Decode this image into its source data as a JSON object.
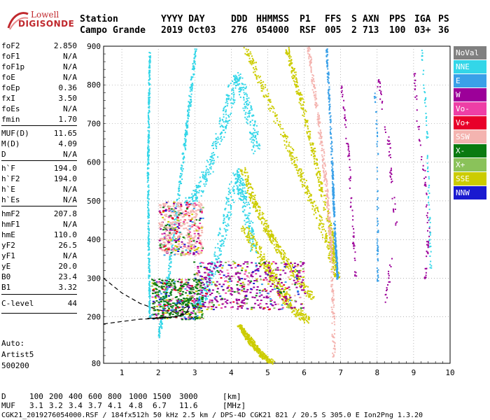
{
  "logo": {
    "line1": "Lowell",
    "line2": "DIGISONDE"
  },
  "header": {
    "station_label": "Station",
    "station_value": "Campo Grande",
    "date_label": "YYYY DAY",
    "date_value": "2019 Oct03",
    "doy_label": "DDD",
    "doy_value": "276",
    "time_label": "HHMMSS",
    "time_value": "054000",
    "p1_label": "P1",
    "p1_value": "RSF",
    "ffs_label": "FFS",
    "ffs_value": "005",
    "s_label": "S",
    "s_value": "2",
    "axn_label": "AXN",
    "axn_value": "713",
    "pps_label": "PPS",
    "pps_value": "100",
    "iga_label": "IGA",
    "iga_value": "03+",
    "ps_label": "PS",
    "ps_value": "36"
  },
  "parameters": [
    {
      "name": "foF2",
      "value": "2.850"
    },
    {
      "name": "foF1",
      "value": "N/A"
    },
    {
      "name": "foF1p",
      "value": "N/A"
    },
    {
      "name": "foE",
      "value": "N/A"
    },
    {
      "name": "foEp",
      "value": "0.36"
    },
    {
      "name": "fxI",
      "value": "3.50"
    },
    {
      "name": "foEs",
      "value": "N/A"
    },
    {
      "name": "fmin",
      "value": "1.70"
    },
    {
      "name": "MUF(D)",
      "value": "11.65"
    },
    {
      "name": "M(D)",
      "value": "4.09"
    },
    {
      "name": "D",
      "value": "N/A"
    },
    {
      "name": "h`F",
      "value": "194.0"
    },
    {
      "name": "h`F2",
      "value": "194.0"
    },
    {
      "name": "h`E",
      "value": "N/A"
    },
    {
      "name": "h`Es",
      "value": "N/A"
    },
    {
      "name": "hmF2",
      "value": "207.8"
    },
    {
      "name": "hmF1",
      "value": "N/A"
    },
    {
      "name": "hmE",
      "value": "110.0"
    },
    {
      "name": "yF2",
      "value": "26.5"
    },
    {
      "name": "yF1",
      "value": "N/A"
    },
    {
      "name": "yE",
      "value": "20.0"
    },
    {
      "name": "B0",
      "value": "23.4"
    },
    {
      "name": "B1",
      "value": "3.32"
    }
  ],
  "clevel": {
    "name": "C-level",
    "value": "44"
  },
  "auto": {
    "line1": "Auto:",
    "line2": "Artist5",
    "line3": "500200"
  },
  "legend": [
    {
      "label": "NoVal",
      "color": "#808080",
      "text_color": "#ffffff"
    },
    {
      "label": "NNE",
      "color": "#33d6e8",
      "text_color": "#ffffff"
    },
    {
      "label": "E",
      "color": "#3aa0e8",
      "text_color": "#ffffff"
    },
    {
      "label": "W",
      "color": "#9c0099",
      "text_color": "#ffffff"
    },
    {
      "label": "Vo-",
      "color": "#ee3fa6",
      "text_color": "#ffffff"
    },
    {
      "label": "Vo+",
      "color": "#e8002a",
      "text_color": "#ffffff"
    },
    {
      "label": "SSW",
      "color": "#f4b4b0",
      "text_color": "#ffffff"
    },
    {
      "label": "X-",
      "color": "#0a7a10",
      "text_color": "#ffffff"
    },
    {
      "label": "X+",
      "color": "#8ac25a",
      "text_color": "#ffffff"
    },
    {
      "label": "SSE",
      "color": "#cccc00",
      "text_color": "#ffffff"
    },
    {
      "label": "NNW",
      "color": "#1a1ad0",
      "text_color": "#ffffff"
    }
  ],
  "footer": {
    "d_label": "D",
    "d_values": [
      "100",
      "200",
      "400",
      "600",
      "800",
      "1000",
      "1500",
      "3000"
    ],
    "d_unit": "[km]",
    "muf_label": "MUF",
    "muf_values": [
      "3.1",
      "3.2",
      "3.4",
      "3.7",
      "4.1",
      "4.8",
      "6.7",
      "11.6"
    ],
    "muf_unit": "[MHz]",
    "info": "CGK21_2019276054000.RSF / 184fx512h 50 kHz 2.5 km / DPS-4D CGK21 821 / 20.5 S 305.0 E Ion2Png 1.3.20"
  },
  "chart_data": {
    "type": "scatter",
    "title": "",
    "xlabel": "",
    "ylabel": "",
    "xlim": [
      0.5,
      10
    ],
    "ylim": [
      80,
      900
    ],
    "x_ticks": [
      1,
      2,
      3,
      4,
      5,
      6,
      7,
      8,
      9,
      10
    ],
    "y_ticks": [
      200,
      300,
      400,
      500,
      600,
      700,
      800,
      900
    ],
    "y_tick_labels_left": [
      "80",
      "200",
      "300",
      "400",
      "500",
      "600",
      "700",
      "800",
      "900"
    ],
    "grid": true,
    "traces": [
      {
        "name": "NNE",
        "color": "#33d6e8",
        "kind": "arch",
        "x_start": 3.0,
        "x_peak": 4.1,
        "x_end": 4.6,
        "y_base": 230,
        "y_peak": 575,
        "width": 0.22
      },
      {
        "name": "NNE",
        "color": "#33d6e8",
        "kind": "arch",
        "x_start": 2.8,
        "x_peak": 4.1,
        "x_end": 4.7,
        "y_base": 500,
        "y_peak": 825,
        "width": 0.25
      },
      {
        "name": "NNE",
        "color": "#33d6e8",
        "kind": "line",
        "points": [
          [
            2.0,
            150
          ],
          [
            2.25,
            300
          ],
          [
            2.55,
            520
          ],
          [
            2.8,
            720
          ],
          [
            3.0,
            890
          ]
        ],
        "width": 0.07
      },
      {
        "name": "NNE",
        "color": "#33d6e8",
        "kind": "line",
        "points": [
          [
            1.75,
            200
          ],
          [
            1.72,
            380
          ],
          [
            1.7,
            560
          ],
          [
            1.72,
            700
          ],
          [
            1.75,
            880
          ]
        ],
        "width": 0.04
      },
      {
        "name": "SSE",
        "color": "#cccc00",
        "kind": "line",
        "points": [
          [
            4.3,
            440
          ],
          [
            4.9,
            340
          ],
          [
            5.3,
            280
          ],
          [
            5.6,
            230
          ],
          [
            6.1,
            190
          ]
        ],
        "width": 0.25
      },
      {
        "name": "SSE",
        "color": "#cccc00",
        "kind": "line",
        "points": [
          [
            4.3,
            585
          ],
          [
            4.6,
            500
          ],
          [
            5.0,
            420
          ],
          [
            5.4,
            360
          ],
          [
            5.8,
            300
          ],
          [
            6.2,
            250
          ]
        ],
        "width": 0.18
      },
      {
        "name": "SSE",
        "color": "#cccc00",
        "kind": "line",
        "points": [
          [
            4.4,
            895
          ],
          [
            5.0,
            760
          ],
          [
            5.7,
            610
          ],
          [
            6.2,
            500
          ],
          [
            6.6,
            400
          ],
          [
            6.9,
            300
          ]
        ],
        "width": 0.16
      },
      {
        "name": "SSE",
        "color": "#cccc00",
        "kind": "line",
        "points": [
          [
            5.5,
            895
          ],
          [
            5.9,
            760
          ],
          [
            6.3,
            600
          ],
          [
            6.7,
            430
          ],
          [
            6.85,
            330
          ]
        ],
        "width": 0.12
      },
      {
        "name": "SSE",
        "color": "#cccc00",
        "kind": "line",
        "points": [
          [
            4.2,
            180
          ],
          [
            4.5,
            140
          ],
          [
            4.8,
            105
          ],
          [
            5.1,
            82
          ]
        ],
        "width": 0.12
      },
      {
        "name": "SSW",
        "color": "#f4b4b0",
        "kind": "line",
        "points": [
          [
            6.1,
            895
          ],
          [
            6.3,
            760
          ],
          [
            6.5,
            620
          ],
          [
            6.65,
            480
          ],
          [
            6.75,
            330
          ],
          [
            6.8,
            85
          ]
        ],
        "width": 0.08
      },
      {
        "name": "E",
        "color": "#3aa0e8",
        "kind": "line",
        "points": [
          [
            6.6,
            895
          ],
          [
            6.75,
            600
          ],
          [
            6.82,
            420
          ],
          [
            6.9,
            300
          ]
        ],
        "width": 0.04
      },
      {
        "name": "W",
        "color": "#9c0099",
        "kind": "scatter_band",
        "points": [
          [
            8.0,
            820
          ],
          [
            8.1,
            760
          ],
          [
            8.3,
            650
          ],
          [
            8.4,
            540
          ],
          [
            8.5,
            440
          ],
          [
            8.3,
            300
          ],
          [
            8.2,
            230
          ]
        ],
        "width": 0.08
      },
      {
        "name": "W",
        "color": "#9c0099",
        "kind": "scatter_band",
        "points": [
          [
            9.0,
            840
          ],
          [
            9.1,
            700
          ],
          [
            9.3,
            560
          ],
          [
            9.4,
            420
          ],
          [
            9.3,
            300
          ]
        ],
        "width": 0.06
      },
      {
        "name": "E",
        "color": "#3aa0e8",
        "kind": "scatter_band",
        "points": [
          [
            7.9,
            820
          ],
          [
            8.0,
            620
          ],
          [
            8.0,
            400
          ],
          [
            8.0,
            290
          ]
        ],
        "width": 0.04
      },
      {
        "name": "NNE",
        "color": "#33d6e8",
        "kind": "scatter_band",
        "points": [
          [
            9.2,
            890
          ],
          [
            9.35,
            700
          ],
          [
            9.4,
            520
          ],
          [
            9.45,
            330
          ]
        ],
        "width": 0.04
      },
      {
        "name": "W",
        "color": "#9c0099",
        "kind": "scatter_band",
        "points": [
          [
            7.0,
            800
          ],
          [
            7.2,
            620
          ],
          [
            7.3,
            450
          ],
          [
            7.4,
            300
          ]
        ],
        "width": 0.05
      },
      {
        "name": "mixed",
        "color": "#9c0099",
        "kind": "cloud",
        "x_range": [
          2.9,
          6.0
        ],
        "y_range": [
          220,
          345
        ]
      },
      {
        "name": "mixed",
        "color": "#f4b4b0",
        "kind": "cloud",
        "x_range": [
          2.0,
          3.2
        ],
        "y_range": [
          360,
          500
        ]
      },
      {
        "name": "mixed",
        "color": "#0a7a10",
        "kind": "cloud",
        "x_range": [
          1.8,
          3.2
        ],
        "y_range": [
          195,
          300
        ]
      }
    ],
    "profile_curves": [
      {
        "style": "dashed",
        "points": [
          [
            0.5,
            300
          ],
          [
            1.0,
            262
          ],
          [
            1.5,
            235
          ],
          [
            2.0,
            218
          ],
          [
            2.5,
            212
          ],
          [
            2.85,
            230
          ]
        ]
      },
      {
        "style": "dashed",
        "points": [
          [
            0.5,
            182
          ],
          [
            1.0,
            188
          ],
          [
            1.5,
            194
          ],
          [
            2.0,
            196
          ],
          [
            2.5,
            200
          ],
          [
            2.85,
            215
          ]
        ]
      },
      {
        "style": "solid",
        "points": [
          [
            1.7,
            196
          ],
          [
            2.1,
            198
          ],
          [
            2.5,
            201
          ],
          [
            2.75,
            208
          ],
          [
            2.85,
            225
          ]
        ]
      }
    ]
  }
}
